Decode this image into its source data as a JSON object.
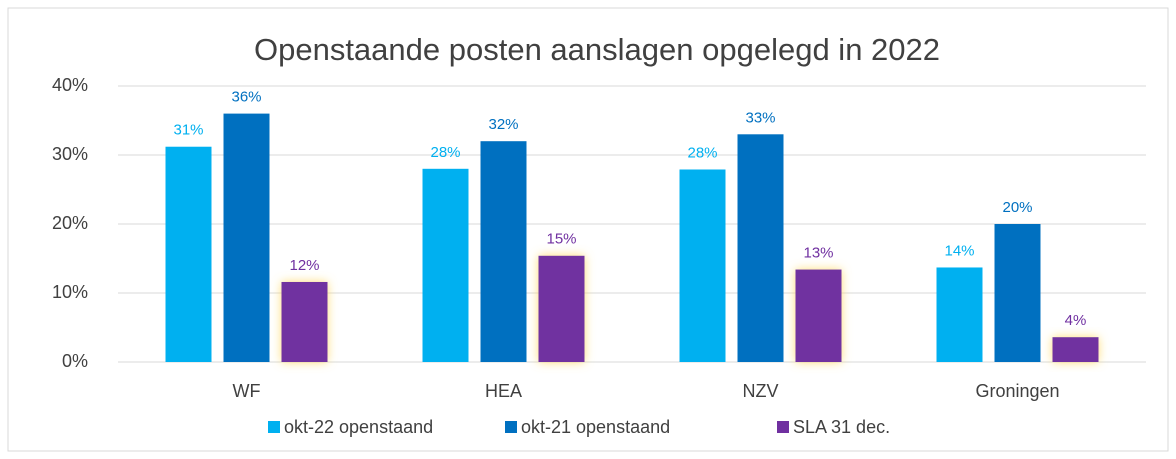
{
  "chart_data": {
    "type": "bar",
    "title": "Openstaande posten aanslagen opgelegd in 2022",
    "categories": [
      "WF",
      "HEA",
      "NZV",
      "Groningen"
    ],
    "series": [
      {
        "name": "okt-22 openstaand",
        "color": "#00b0f0",
        "values": [
          31.2,
          28,
          27.9,
          13.7
        ],
        "value_labels": [
          "31%",
          "28%",
          "28%",
          "14%"
        ]
      },
      {
        "name": "okt-21 openstaand",
        "color": "#0070c0",
        "values": [
          36,
          32,
          33,
          20
        ],
        "value_labels": [
          "36%",
          "32%",
          "33%",
          "20%"
        ]
      },
      {
        "name": "SLA 31 dec.",
        "color": "#7030a0",
        "values": [
          11.6,
          15.4,
          13.4,
          3.6
        ],
        "value_labels": [
          "12%",
          "15%",
          "13%",
          "4%"
        ]
      }
    ],
    "ylim": [
      0,
      40
    ],
    "yticks": [
      {
        "value": 0,
        "label": "0%"
      },
      {
        "value": 10,
        "label": "10%"
      },
      {
        "value": 20,
        "label": "20%"
      },
      {
        "value": 30,
        "label": "30%"
      },
      {
        "value": 40,
        "label": "40%"
      }
    ],
    "grid": true,
    "legend": "bottom"
  }
}
